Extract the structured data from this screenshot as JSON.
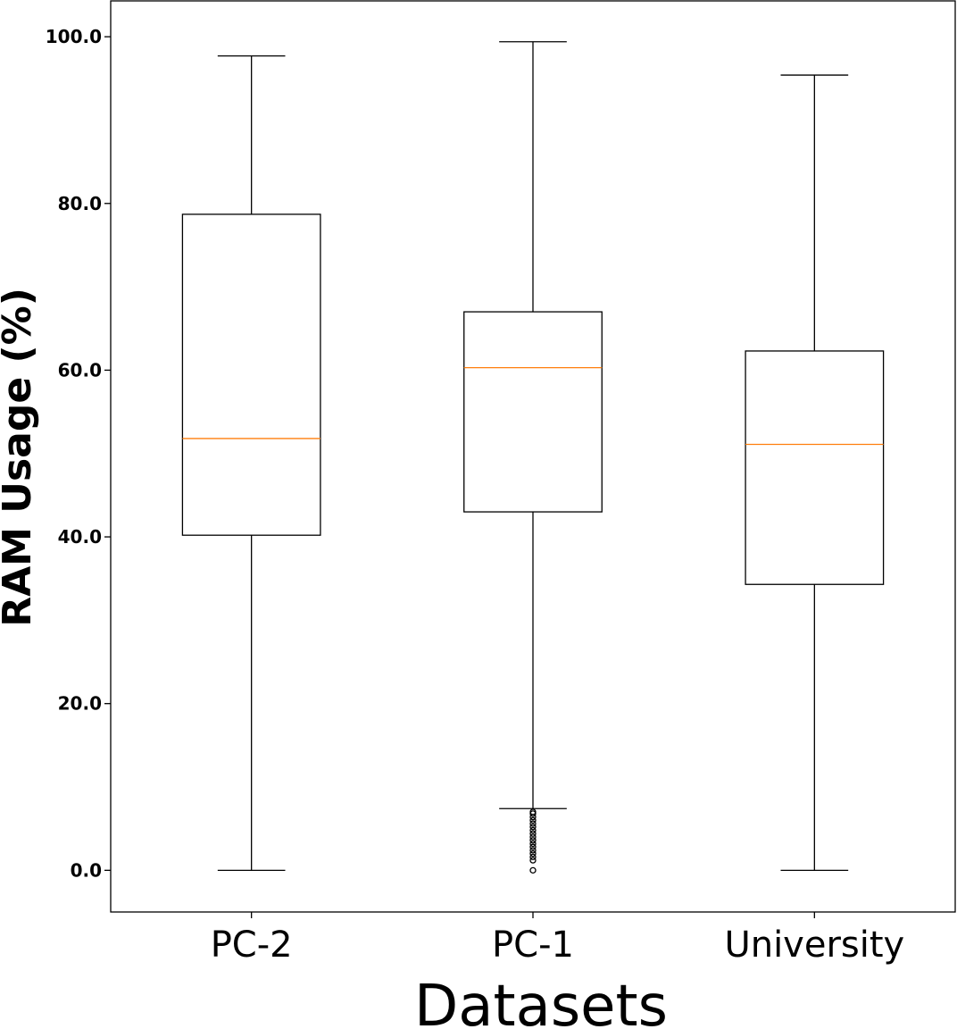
{
  "chart_data": {
    "type": "box",
    "xlabel": "Datasets",
    "ylabel": "RAM Usage (%)",
    "ylim": [
      -5,
      104.3
    ],
    "yticks": [
      0,
      20,
      40,
      60,
      80,
      100
    ],
    "ytick_labels": [
      "0.0",
      "20.0",
      "40.0",
      "60.0",
      "80.0",
      "100.0"
    ],
    "categories": [
      "PC-2",
      "PC-1",
      "University"
    ],
    "boxes": [
      {
        "whisker_low": 0.0,
        "q1": 40.2,
        "median": 51.8,
        "q3": 78.7,
        "whisker_high": 97.7,
        "outliers": []
      },
      {
        "whisker_low": 7.4,
        "q1": 43.0,
        "median": 60.3,
        "q3": 67.0,
        "whisker_high": 99.4,
        "outliers": [
          0.0,
          1.2,
          1.6,
          2.0,
          2.4,
          2.8,
          3.2,
          3.6,
          4.0,
          4.4,
          4.8,
          5.2,
          5.6,
          6.0,
          6.4,
          6.8,
          7.0
        ]
      },
      {
        "whisker_low": 0.0,
        "q1": 34.3,
        "median": 51.1,
        "q3": 62.3,
        "whisker_high": 95.4,
        "outliers": []
      }
    ],
    "grid": false,
    "legend": "none",
    "colors": {
      "box": "#000000",
      "median": "#ff7f0e",
      "axes": "#000000"
    }
  }
}
